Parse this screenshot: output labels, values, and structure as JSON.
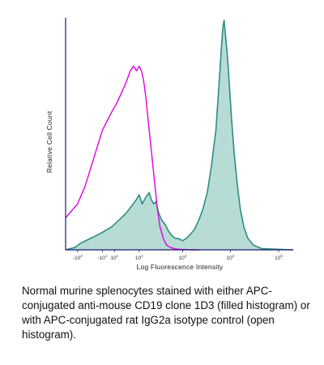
{
  "chart_data": {
    "type": "histogram",
    "xlabel": "Log Fluorescence Intensity",
    "ylabel": "Relative Cell Count",
    "x_scale": "log",
    "xlim": [
      -200,
      200000
    ],
    "ylim": [
      0,
      100
    ],
    "x_ticks": [
      {
        "base": "-10",
        "exp": "2",
        "value": -100
      },
      {
        "base": "-10",
        "exp": "1",
        "value": -10
      },
      {
        "base": "10",
        "exp": "1",
        "value": 10
      },
      {
        "base": "10",
        "exp": "2",
        "value": 100
      },
      {
        "base": "10",
        "exp": "3",
        "value": 1000
      },
      {
        "base": "10",
        "exp": "4",
        "value": 10000
      },
      {
        "base": "10",
        "exp": "5",
        "value": 100000
      }
    ],
    "grid": false,
    "series": [
      {
        "style": "filled",
        "color": "#2e8c84",
        "fill": "#b7dcd6",
        "x": [
          -200,
          -120,
          -80,
          -40,
          -15,
          5,
          20,
          40,
          60,
          85,
          100,
          120,
          150,
          180,
          200,
          230,
          260,
          300,
          350,
          420,
          500,
          600,
          700,
          800,
          1000,
          1200,
          1500,
          1800,
          2200,
          2700,
          3300,
          4000,
          5000,
          5800,
          6500,
          7000,
          7400,
          7800,
          8200,
          8800,
          9500,
          10500,
          12000,
          14000,
          16000,
          19000,
          23000,
          30000,
          45000,
          200000
        ],
        "y": [
          0,
          1,
          3,
          5,
          7,
          10,
          13,
          16,
          19,
          22,
          24,
          20,
          23,
          25,
          22,
          20,
          21,
          16,
          13,
          11,
          8,
          6,
          5,
          5,
          4,
          5,
          7,
          9,
          13,
          18,
          25,
          36,
          52,
          72,
          88,
          97,
          100,
          95,
          90,
          83,
          72,
          58,
          42,
          28,
          18,
          10,
          5,
          2,
          0.5,
          0
        ]
      },
      {
        "style": "open",
        "color": "#e000e0",
        "x": [
          -200,
          -100,
          -60,
          -30,
          -10,
          5,
          15,
          25,
          40,
          55,
          70,
          85,
          100,
          115,
          130,
          150,
          170,
          200,
          240,
          280,
          320,
          380,
          450,
          550,
          700,
          900,
          1200,
          1600,
          2200
        ],
        "y": [
          14,
          20,
          28,
          40,
          52,
          60,
          64,
          68,
          73,
          78,
          80,
          78,
          80,
          78,
          74,
          66,
          56,
          44,
          30,
          18,
          10,
          5,
          2,
          1,
          0.4,
          0.2,
          0.1,
          0,
          0
        ]
      }
    ]
  },
  "caption": "Normal murine splenocytes stained with either APC-conjugated anti-mouse CD19 clone 1D3 (filled histogram) or with APC-conjugated rat IgG2a isotype control (open histogram)."
}
